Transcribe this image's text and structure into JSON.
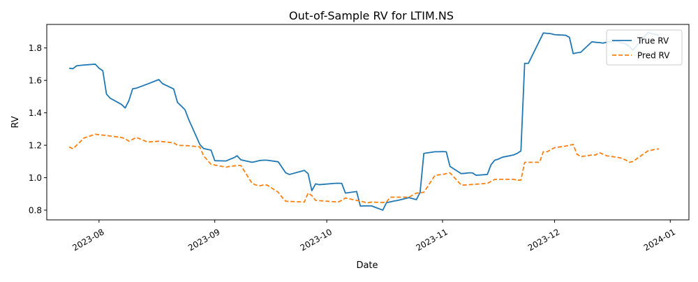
{
  "chart_data": {
    "type": "line",
    "title": "Out-of-Sample RV for LTIM.NS",
    "xlabel": "Date",
    "ylabel": "RV",
    "xlim": [
      "2023-07-18",
      "2024-01-06"
    ],
    "ylim": [
      0.74,
      1.945
    ],
    "x_ticks": [
      "2023-08-01",
      "2023-09-01",
      "2023-10-01",
      "2023-11-01",
      "2023-12-01",
      "2024-01-01"
    ],
    "x_tick_labels": [
      "2023-08",
      "2023-09",
      "2023-10",
      "2023-11",
      "2023-12",
      "2024-01"
    ],
    "y_ticks": [
      0.8,
      1.0,
      1.2,
      1.4,
      1.6,
      1.8
    ],
    "y_tick_labels": [
      "0.8",
      "1.0",
      "1.2",
      "1.4",
      "1.6",
      "1.8"
    ],
    "grid": false,
    "legend_position": "top-right",
    "series": [
      {
        "name": "True RV",
        "color": "#1f77b4",
        "style": "solid",
        "points": [
          [
            "2023-07-24",
            1.675
          ],
          [
            "2023-07-25",
            1.672
          ],
          [
            "2023-07-26",
            1.69
          ],
          [
            "2023-07-28",
            1.695
          ],
          [
            "2023-07-31",
            1.7
          ],
          [
            "2023-08-01",
            1.675
          ],
          [
            "2023-08-02",
            1.66
          ],
          [
            "2023-08-03",
            1.515
          ],
          [
            "2023-08-04",
            1.49
          ],
          [
            "2023-08-07",
            1.452
          ],
          [
            "2023-08-08",
            1.43
          ],
          [
            "2023-08-09",
            1.475
          ],
          [
            "2023-08-10",
            1.548
          ],
          [
            "2023-08-11",
            1.552
          ],
          [
            "2023-08-14",
            1.578
          ],
          [
            "2023-08-17",
            1.605
          ],
          [
            "2023-08-18",
            1.58
          ],
          [
            "2023-08-21",
            1.547
          ],
          [
            "2023-08-22",
            1.465
          ],
          [
            "2023-08-24",
            1.42
          ],
          [
            "2023-08-25",
            1.36
          ],
          [
            "2023-08-28",
            1.205
          ],
          [
            "2023-08-29",
            1.18
          ],
          [
            "2023-08-31",
            1.17
          ],
          [
            "2023-09-01",
            1.105
          ],
          [
            "2023-09-04",
            1.103
          ],
          [
            "2023-09-05",
            1.113
          ],
          [
            "2023-09-06",
            1.122
          ],
          [
            "2023-09-07",
            1.135
          ],
          [
            "2023-09-08",
            1.11
          ],
          [
            "2023-09-11",
            1.095
          ],
          [
            "2023-09-12",
            1.1
          ],
          [
            "2023-09-13",
            1.106
          ],
          [
            "2023-09-14",
            1.108
          ],
          [
            "2023-09-15",
            1.108
          ],
          [
            "2023-09-18",
            1.098
          ],
          [
            "2023-09-20",
            1.03
          ],
          [
            "2023-09-21",
            1.02
          ],
          [
            "2023-09-25",
            1.045
          ],
          [
            "2023-09-26",
            1.025
          ],
          [
            "2023-09-27",
            0.92
          ],
          [
            "2023-09-28",
            0.962
          ],
          [
            "2023-09-29",
            0.957
          ],
          [
            "2023-10-03",
            0.965
          ],
          [
            "2023-10-04",
            0.966
          ],
          [
            "2023-10-05",
            0.965
          ],
          [
            "2023-10-06",
            0.905
          ],
          [
            "2023-10-09",
            0.915
          ],
          [
            "2023-10-10",
            0.825
          ],
          [
            "2023-10-11",
            0.826
          ],
          [
            "2023-10-12",
            0.826
          ],
          [
            "2023-10-13",
            0.826
          ],
          [
            "2023-10-16",
            0.8
          ],
          [
            "2023-10-17",
            0.846
          ],
          [
            "2023-10-18",
            0.851
          ],
          [
            "2023-10-19",
            0.856
          ],
          [
            "2023-10-20",
            0.86
          ],
          [
            "2023-10-23",
            0.877
          ],
          [
            "2023-10-25",
            0.865
          ],
          [
            "2023-10-26",
            0.91
          ],
          [
            "2023-10-27",
            1.15
          ],
          [
            "2023-10-30",
            1.16
          ],
          [
            "2023-10-31",
            1.16
          ],
          [
            "2023-11-01",
            1.161
          ],
          [
            "2023-11-02",
            1.16
          ],
          [
            "2023-11-03",
            1.07
          ],
          [
            "2023-11-06",
            1.025
          ],
          [
            "2023-11-07",
            1.027
          ],
          [
            "2023-11-08",
            1.03
          ],
          [
            "2023-11-09",
            1.03
          ],
          [
            "2023-11-10",
            1.015
          ],
          [
            "2023-11-13",
            1.02
          ],
          [
            "2023-11-14",
            1.08
          ],
          [
            "2023-11-15",
            1.108
          ],
          [
            "2023-11-16",
            1.115
          ],
          [
            "2023-11-17",
            1.126
          ],
          [
            "2023-11-20",
            1.14
          ],
          [
            "2023-11-21",
            1.15
          ],
          [
            "2023-11-22",
            1.165
          ],
          [
            "2023-11-23",
            1.705
          ],
          [
            "2023-11-24",
            1.705
          ],
          [
            "2023-11-28",
            1.892
          ],
          [
            "2023-11-29",
            1.89
          ],
          [
            "2023-11-30",
            1.888
          ],
          [
            "2023-12-01",
            1.882
          ],
          [
            "2023-12-04",
            1.878
          ],
          [
            "2023-12-05",
            1.865
          ],
          [
            "2023-12-06",
            1.765
          ],
          [
            "2023-12-07",
            1.77
          ],
          [
            "2023-12-08",
            1.773
          ],
          [
            "2023-12-11",
            1.838
          ],
          [
            "2023-12-12",
            1.835
          ],
          [
            "2023-12-13",
            1.833
          ],
          [
            "2023-12-14",
            1.83
          ],
          [
            "2023-12-15",
            1.836
          ],
          [
            "2023-12-18",
            1.842
          ],
          [
            "2023-12-19",
            1.83
          ],
          [
            "2023-12-20",
            1.826
          ],
          [
            "2023-12-21",
            1.81
          ],
          [
            "2023-12-22",
            1.787
          ],
          [
            "2023-12-26",
            1.895
          ],
          [
            "2023-12-27",
            1.888
          ],
          [
            "2023-12-28",
            1.884
          ],
          [
            "2023-12-29",
            1.878
          ]
        ]
      },
      {
        "name": "Pred RV",
        "color": "#ff7f0e",
        "style": "dashed",
        "points": [
          [
            "2023-07-24",
            1.19
          ],
          [
            "2023-07-25",
            1.178
          ],
          [
            "2023-07-26",
            1.2
          ],
          [
            "2023-07-28",
            1.245
          ],
          [
            "2023-07-31",
            1.268
          ],
          [
            "2023-08-03",
            1.26
          ],
          [
            "2023-08-07",
            1.248
          ],
          [
            "2023-08-08",
            1.24
          ],
          [
            "2023-08-09",
            1.225
          ],
          [
            "2023-08-11",
            1.248
          ],
          [
            "2023-08-14",
            1.22
          ],
          [
            "2023-08-17",
            1.225
          ],
          [
            "2023-08-21",
            1.215
          ],
          [
            "2023-08-22",
            1.2
          ],
          [
            "2023-08-25",
            1.197
          ],
          [
            "2023-08-28",
            1.19
          ],
          [
            "2023-08-29",
            1.135
          ],
          [
            "2023-08-31",
            1.083
          ],
          [
            "2023-09-01",
            1.078
          ],
          [
            "2023-09-04",
            1.065
          ],
          [
            "2023-09-05",
            1.07
          ],
          [
            "2023-09-07",
            1.075
          ],
          [
            "2023-09-08",
            1.075
          ],
          [
            "2023-09-11",
            0.965
          ],
          [
            "2023-09-12",
            0.955
          ],
          [
            "2023-09-13",
            0.95
          ],
          [
            "2023-09-14",
            0.955
          ],
          [
            "2023-09-15",
            0.955
          ],
          [
            "2023-09-18",
            0.91
          ],
          [
            "2023-09-19",
            0.88
          ],
          [
            "2023-09-20",
            0.855
          ],
          [
            "2023-09-25",
            0.85
          ],
          [
            "2023-09-26",
            0.905
          ],
          [
            "2023-09-27",
            0.89
          ],
          [
            "2023-09-28",
            0.86
          ],
          [
            "2023-10-03",
            0.852
          ],
          [
            "2023-10-04",
            0.85
          ],
          [
            "2023-10-05",
            0.86
          ],
          [
            "2023-10-06",
            0.875
          ],
          [
            "2023-10-09",
            0.86
          ],
          [
            "2023-10-12",
            0.845
          ],
          [
            "2023-10-13",
            0.85
          ],
          [
            "2023-10-16",
            0.847
          ],
          [
            "2023-10-17",
            0.85
          ],
          [
            "2023-10-18",
            0.88
          ],
          [
            "2023-10-20",
            0.88
          ],
          [
            "2023-10-23",
            0.88
          ],
          [
            "2023-10-25",
            0.905
          ],
          [
            "2023-10-27",
            0.91
          ],
          [
            "2023-10-30",
            1.015
          ],
          [
            "2023-11-01",
            1.02
          ],
          [
            "2023-11-02",
            1.025
          ],
          [
            "2023-11-03",
            1.03
          ],
          [
            "2023-11-06",
            0.955
          ],
          [
            "2023-11-07",
            0.955
          ],
          [
            "2023-11-10",
            0.96
          ],
          [
            "2023-11-13",
            0.965
          ],
          [
            "2023-11-15",
            0.99
          ],
          [
            "2023-11-16",
            0.99
          ],
          [
            "2023-11-17",
            0.99
          ],
          [
            "2023-11-20",
            0.99
          ],
          [
            "2023-11-21",
            0.985
          ],
          [
            "2023-11-22",
            0.985
          ],
          [
            "2023-11-23",
            1.095
          ],
          [
            "2023-11-24",
            1.095
          ],
          [
            "2023-11-27",
            1.095
          ],
          [
            "2023-11-28",
            1.16
          ],
          [
            "2023-11-29",
            1.16
          ],
          [
            "2023-12-01",
            1.185
          ],
          [
            "2023-12-04",
            1.195
          ],
          [
            "2023-12-05",
            1.2
          ],
          [
            "2023-12-06",
            1.205
          ],
          [
            "2023-12-07",
            1.145
          ],
          [
            "2023-12-08",
            1.13
          ],
          [
            "2023-12-11",
            1.14
          ],
          [
            "2023-12-12",
            1.14
          ],
          [
            "2023-12-13",
            1.155
          ],
          [
            "2023-12-14",
            1.145
          ],
          [
            "2023-12-15",
            1.135
          ],
          [
            "2023-12-18",
            1.125
          ],
          [
            "2023-12-19",
            1.12
          ],
          [
            "2023-12-20",
            1.11
          ],
          [
            "2023-12-21",
            1.095
          ],
          [
            "2023-12-22",
            1.1
          ],
          [
            "2023-12-26",
            1.165
          ],
          [
            "2023-12-27",
            1.17
          ],
          [
            "2023-12-28",
            1.175
          ],
          [
            "2023-12-29",
            1.178
          ]
        ]
      }
    ]
  }
}
